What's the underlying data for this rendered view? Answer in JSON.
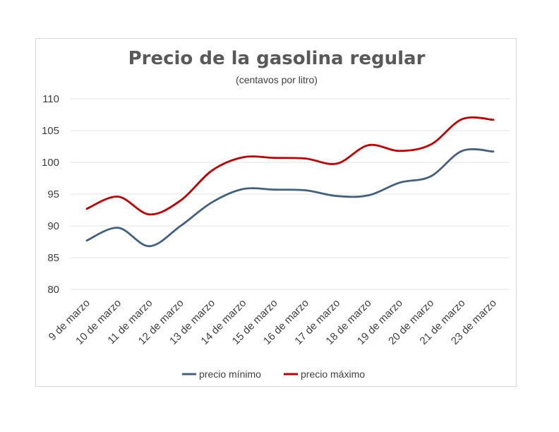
{
  "chart_data": {
    "type": "line",
    "title": "Precio de la gasolina regular",
    "subtitle": "(centavos por litro)",
    "xlabel": "",
    "ylabel": "",
    "ylim": [
      80,
      110
    ],
    "yticks": [
      80,
      85,
      90,
      95,
      100,
      105,
      110
    ],
    "grid": true,
    "legend_position": "bottom",
    "categories": [
      "9 de marzo",
      "10 de marzo",
      "11 de marzo",
      "12 de marzo",
      "13 de marzo",
      "14 de marzo",
      "15 de marzo",
      "16 de marzo",
      "17 de marzo",
      "18 de marzo",
      "19 de marzo",
      "20 de marzo",
      "21 de marzo",
      "23 de marzo"
    ],
    "series": [
      {
        "name": "precio mínimo",
        "color": "#44607f",
        "values": [
          87.7,
          89.7,
          86.8,
          90.0,
          93.7,
          95.8,
          95.7,
          95.6,
          94.7,
          94.8,
          96.8,
          97.8,
          101.8,
          101.7
        ]
      },
      {
        "name": "precio máximo",
        "color": "#c00000",
        "values": [
          92.7,
          94.6,
          91.8,
          94.0,
          98.7,
          100.8,
          100.7,
          100.6,
          99.8,
          102.7,
          101.8,
          102.8,
          106.8,
          106.7
        ]
      }
    ]
  }
}
